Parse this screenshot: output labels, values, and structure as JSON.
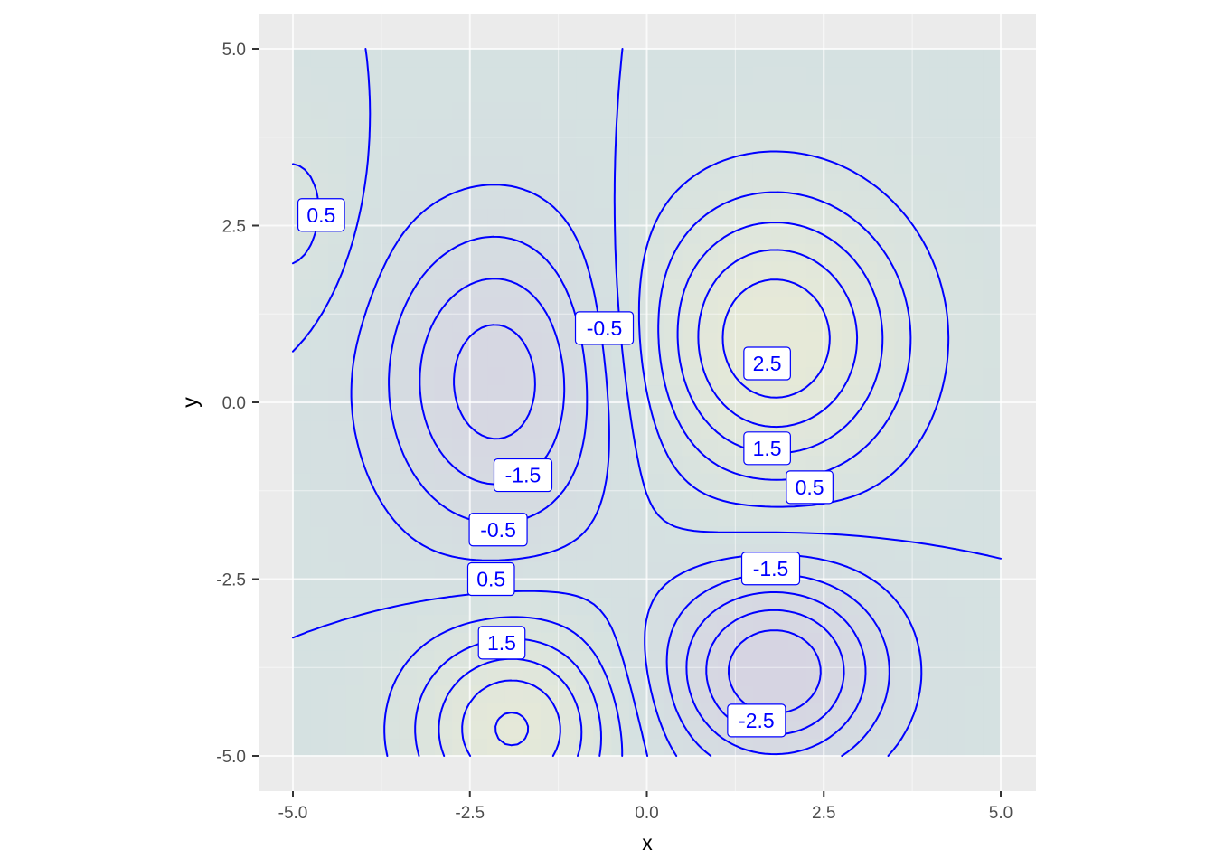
{
  "chart_data": {
    "type": "contour",
    "title": "",
    "xlabel": "x",
    "ylabel": "y",
    "xlim": [
      -5,
      5
    ],
    "ylim": [
      -5,
      5
    ],
    "x_ticks": [
      -5,
      -2.5,
      0,
      2.5,
      5
    ],
    "y_ticks": [
      -5,
      -2.5,
      0,
      2.5,
      5
    ],
    "x_tick_labels": [
      "-5.0",
      "-2.5",
      "0.0",
      "2.5",
      "5.0"
    ],
    "y_tick_labels": [
      "-5.0",
      "-2.5",
      "0.0",
      "2.5",
      "5.0"
    ],
    "grid": true,
    "legend": "none",
    "contour_levels": [
      -2.5,
      -2,
      -1.5,
      -1,
      -0.5,
      0,
      0.5,
      1,
      1.5,
      2,
      2.5
    ],
    "labels": [
      {
        "x": -4.6,
        "y": 2.65,
        "text": "0.5"
      },
      {
        "x": -0.6,
        "y": 1.05,
        "text": "-0.5"
      },
      {
        "x": 1.7,
        "y": 0.55,
        "text": "2.5"
      },
      {
        "x": 1.7,
        "y": -0.65,
        "text": "1.5"
      },
      {
        "x": 2.3,
        "y": -1.2,
        "text": "0.5"
      },
      {
        "x": -1.75,
        "y": -1.03,
        "text": "-1.5"
      },
      {
        "x": -2.1,
        "y": -1.8,
        "text": "-0.5"
      },
      {
        "x": -2.2,
        "y": -2.5,
        "text": "0.5"
      },
      {
        "x": -2.05,
        "y": -3.4,
        "text": "1.5"
      },
      {
        "x": 1.75,
        "y": -2.35,
        "text": "-1.5"
      },
      {
        "x": 1.55,
        "y": -4.5,
        "text": "-2.5"
      }
    ],
    "colors": {
      "panel": "#ebebeb",
      "grid": "#ffffff",
      "contour": "#0000ff",
      "fill_low": "#d6d4e2",
      "fill_mid": "#d5e1e1",
      "fill_high": "#e6e9d8"
    }
  }
}
